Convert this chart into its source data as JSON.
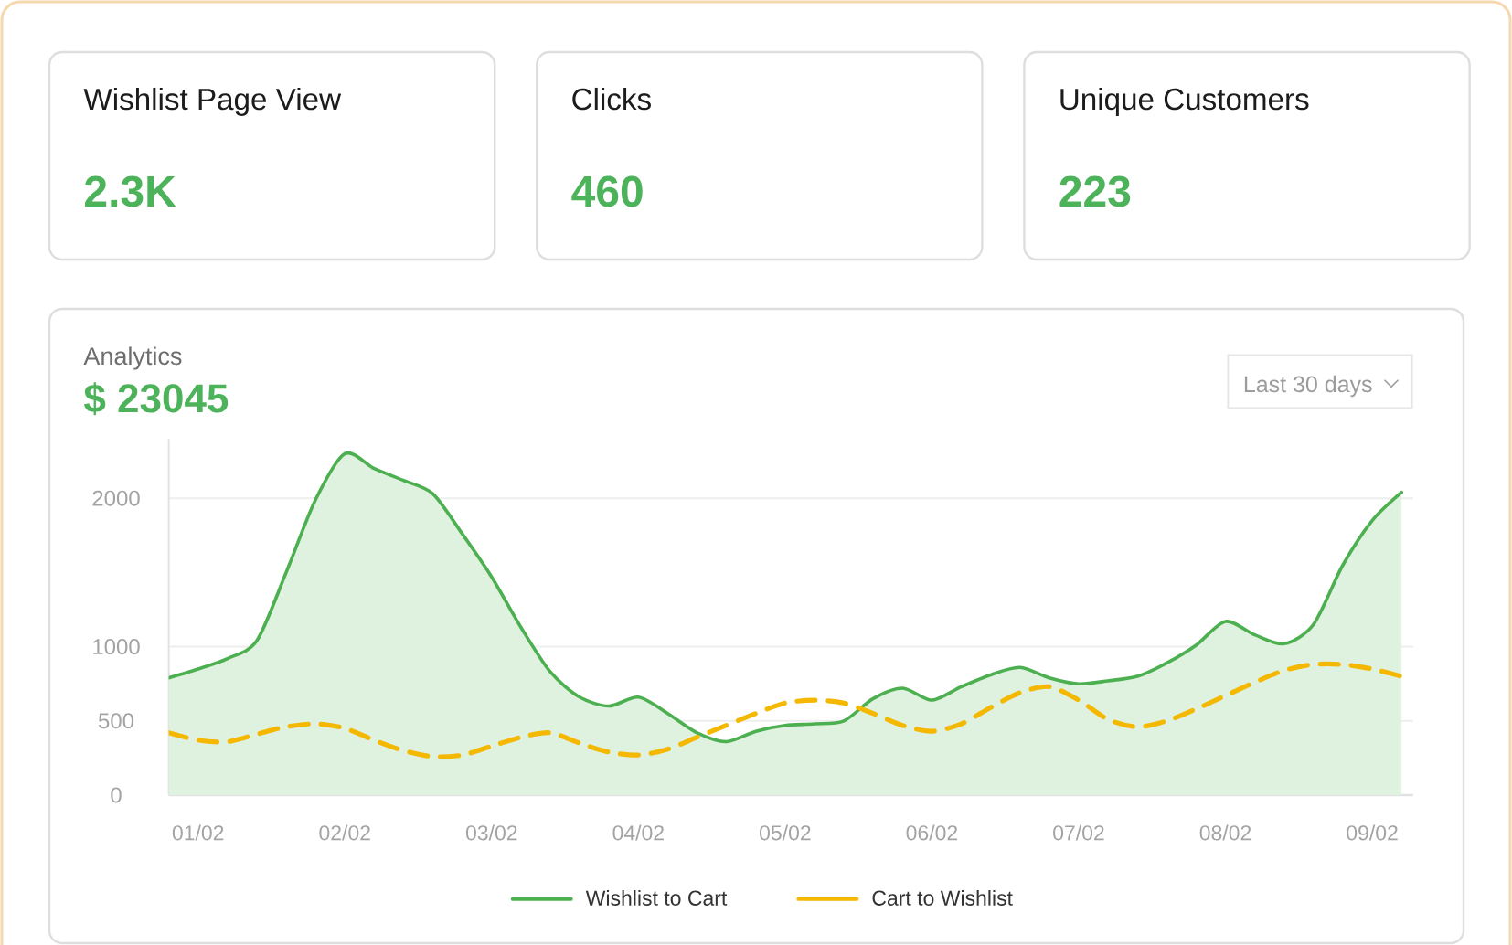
{
  "chart_data": [
    {
      "type": "other",
      "title": "Wishlist Page View",
      "annotations": [
        "2.3K"
      ]
    },
    {
      "type": "other",
      "title": "Clicks",
      "annotations": [
        "460"
      ]
    },
    {
      "type": "other",
      "title": "Unique Customers",
      "annotations": [
        "223"
      ]
    },
    {
      "type": "area",
      "title": "Analytics",
      "subtitle": "$ 23045",
      "annotations": [
        "Last 30 days"
      ],
      "categories": [
        null,
        "01/02",
        null,
        null,
        null,
        null,
        "02/02",
        null,
        null,
        null,
        null,
        "03/02",
        null,
        null,
        null,
        null,
        "04/02",
        null,
        null,
        null,
        null,
        "05/02",
        null,
        null,
        null,
        null,
        "06/02",
        null,
        null,
        null,
        null,
        "07/02",
        null,
        null,
        null,
        null,
        "08/02",
        null,
        null,
        null,
        null,
        "09/02",
        null
      ],
      "ylim": [
        0,
        2400
      ],
      "yticks": [
        0,
        500,
        1000,
        2000
      ],
      "grid": "y",
      "legend": "bottom",
      "series": [
        {
          "name": "Wishlist to Cart",
          "type": "area",
          "color": "#4caf50",
          "values": [
            790,
            850,
            920,
            1040,
            1500,
            1990,
            2300,
            2200,
            2120,
            2030,
            1760,
            1470,
            1130,
            830,
            660,
            600,
            660,
            550,
            420,
            360,
            430,
            470,
            480,
            500,
            650,
            720,
            640,
            730,
            810,
            860,
            790,
            750,
            770,
            800,
            890,
            1010,
            1170,
            1080,
            1020,
            1150,
            1550,
            1850,
            2040
          ]
        },
        {
          "name": "Cart to Wishlist",
          "type": "line",
          "color": "#f5b800",
          "line_style": "dashed",
          "values": [
            420,
            370,
            360,
            410,
            460,
            480,
            450,
            370,
            300,
            260,
            270,
            330,
            390,
            420,
            350,
            290,
            270,
            310,
            390,
            470,
            550,
            620,
            640,
            620,
            550,
            470,
            430,
            480,
            590,
            690,
            730,
            640,
            510,
            460,
            500,
            580,
            670,
            760,
            840,
            880,
            880,
            850,
            800
          ]
        }
      ]
    }
  ]
}
